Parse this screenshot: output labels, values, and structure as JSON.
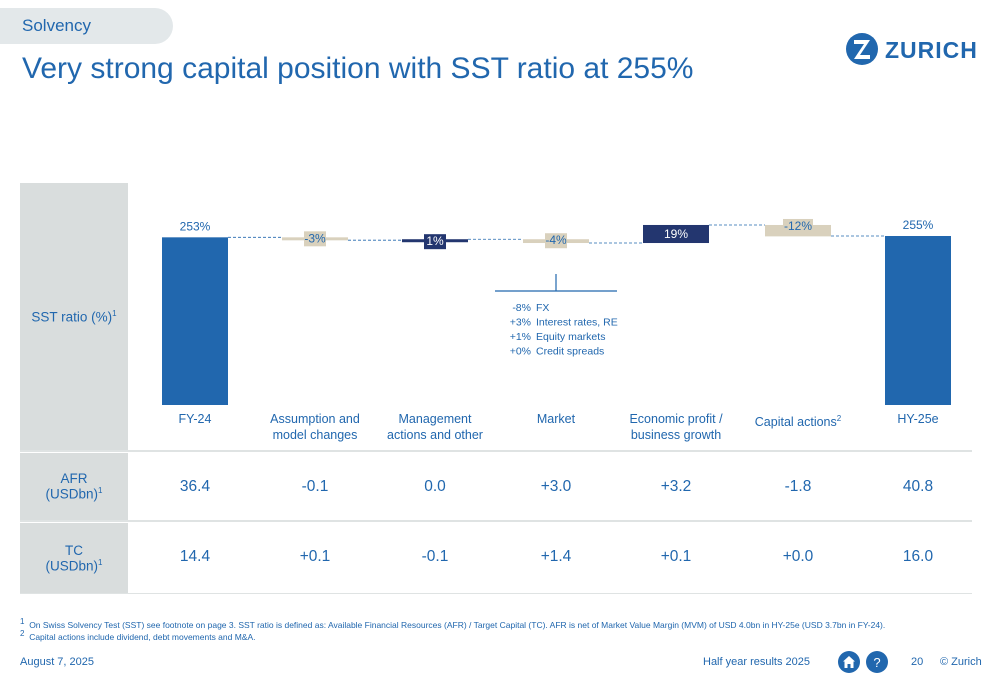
{
  "header": {
    "section": "Solvency",
    "title": "Very strong capital position with SST ratio at 255%",
    "logo_text": "ZURICH"
  },
  "rows": {
    "sst_label": "SST ratio (%)",
    "sst_sup": "1",
    "afr_label_1": "AFR",
    "afr_label_2": "(USDbn)",
    "afr_sup": "1",
    "tc_label_1": "TC",
    "tc_label_2": "(USDbn)",
    "tc_sup": "1"
  },
  "categories": [
    {
      "line1": "FY-24",
      "line2": "",
      "sup": ""
    },
    {
      "line1": "Assumption and",
      "line2": "model changes",
      "sup": ""
    },
    {
      "line1": "Management",
      "line2": "actions and other",
      "sup": ""
    },
    {
      "line1": "Market",
      "line2": "",
      "sup": ""
    },
    {
      "line1": "Economic profit /",
      "line2": "business growth",
      "sup": ""
    },
    {
      "line1": "Capital actions",
      "line2": "",
      "sup": "2"
    },
    {
      "line1": "HY-25e",
      "line2": "",
      "sup": ""
    }
  ],
  "afr_values": [
    "36.4",
    "-0.1",
    "0.0",
    "+3.0",
    "+3.2",
    "-1.8",
    "40.8"
  ],
  "tc_values": [
    "14.4",
    "+0.1",
    "-0.1",
    "+1.4",
    "+0.1",
    "+0.0",
    "16.0"
  ],
  "chart_data": {
    "type": "bar",
    "subtype": "waterfall",
    "categories": [
      "FY-24",
      "Assumption and model changes",
      "Management actions and other",
      "Market",
      "Economic profit / business growth",
      "Capital actions",
      "HY-25e"
    ],
    "values": [
      253,
      -3,
      1,
      -4,
      19,
      -12,
      255
    ],
    "kinds": [
      "total",
      "delta",
      "delta",
      "delta",
      "delta",
      "delta",
      "total"
    ],
    "labels": [
      "253%",
      "-3%",
      "1%",
      "-4%",
      "19%",
      "-12%",
      "255%"
    ],
    "ylabel": "SST ratio (%)",
    "colors": {
      "total": "#2167ae",
      "positive": "#23366f",
      "negative": "#d9d1bd",
      "connector": "#2167ae"
    },
    "market_breakdown": [
      {
        "value": "-8%",
        "label": "FX"
      },
      {
        "value": "+3%",
        "label": "Interest rates, RE"
      },
      {
        "value": "+1%",
        "label": "Equity markets"
      },
      {
        "value": "+0%",
        "label": "Credit spreads"
      }
    ]
  },
  "footnotes": [
    {
      "num": "1",
      "text": "On Swiss Solvency Test (SST) see footnote on page 3. SST ratio is defined as: Available Financial Resources (AFR) / Target Capital (TC). AFR is net of Market Value Margin (MVM) of USD 4.0bn in HY-25e (USD 3.7bn in FY-24)."
    },
    {
      "num": "2",
      "text": "Capital actions include dividend, debt movements and M&A."
    }
  ],
  "footer": {
    "date": "August 7, 2025",
    "doc": "Half year results 2025",
    "page": "20",
    "copyright": "© Zurich",
    "help": "?"
  }
}
